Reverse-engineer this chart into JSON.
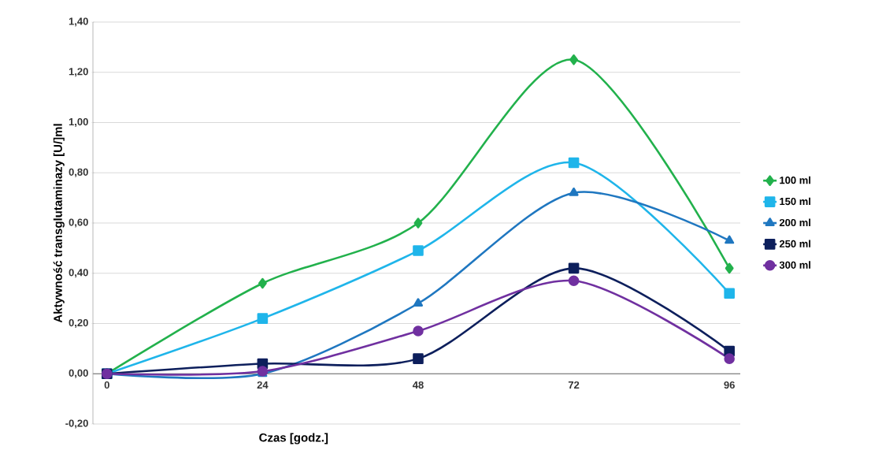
{
  "chart_data": {
    "type": "line",
    "xlabel": "Czas [godz.]",
    "ylabel": "Aktywność transglutaminazy [U/]ml",
    "categories": [
      "0",
      "24",
      "48",
      "72",
      "96"
    ],
    "ylim": [
      -0.2,
      1.4
    ],
    "yticks": [
      {
        "value": -0.2,
        "label": "-0,20"
      },
      {
        "value": 0,
        "label": "0,00"
      },
      {
        "value": 0.2,
        "label": "0,20"
      },
      {
        "value": 0.4,
        "label": "0,40"
      },
      {
        "value": 0.6,
        "label": "0,60"
      },
      {
        "value": 0.8,
        "label": "0,80"
      },
      {
        "value": 1.0,
        "label": "1,00"
      },
      {
        "value": 1.2,
        "label": "1,20"
      },
      {
        "value": 1.4,
        "label": "1,40"
      }
    ],
    "grid": "y",
    "legend": "right",
    "series": [
      {
        "name": "100 ml",
        "color": "#22b14c",
        "marker": "diamond",
        "values": [
          0,
          0.36,
          0.6,
          1.25,
          0.42
        ]
      },
      {
        "name": "150 ml",
        "color": "#1fb5ea",
        "marker": "square",
        "values": [
          0,
          0.22,
          0.49,
          0.84,
          0.32
        ]
      },
      {
        "name": "200 ml",
        "color": "#1f77c0",
        "marker": "triangle",
        "values": [
          0,
          0.0,
          0.28,
          0.72,
          0.53
        ]
      },
      {
        "name": "250 ml",
        "color": "#0d1f5c",
        "marker": "square",
        "values": [
          0,
          0.04,
          0.06,
          0.42,
          0.09
        ]
      },
      {
        "name": "300 ml",
        "color": "#7030a0",
        "marker": "circle",
        "values": [
          0,
          0.01,
          0.17,
          0.37,
          0.06
        ]
      }
    ]
  }
}
